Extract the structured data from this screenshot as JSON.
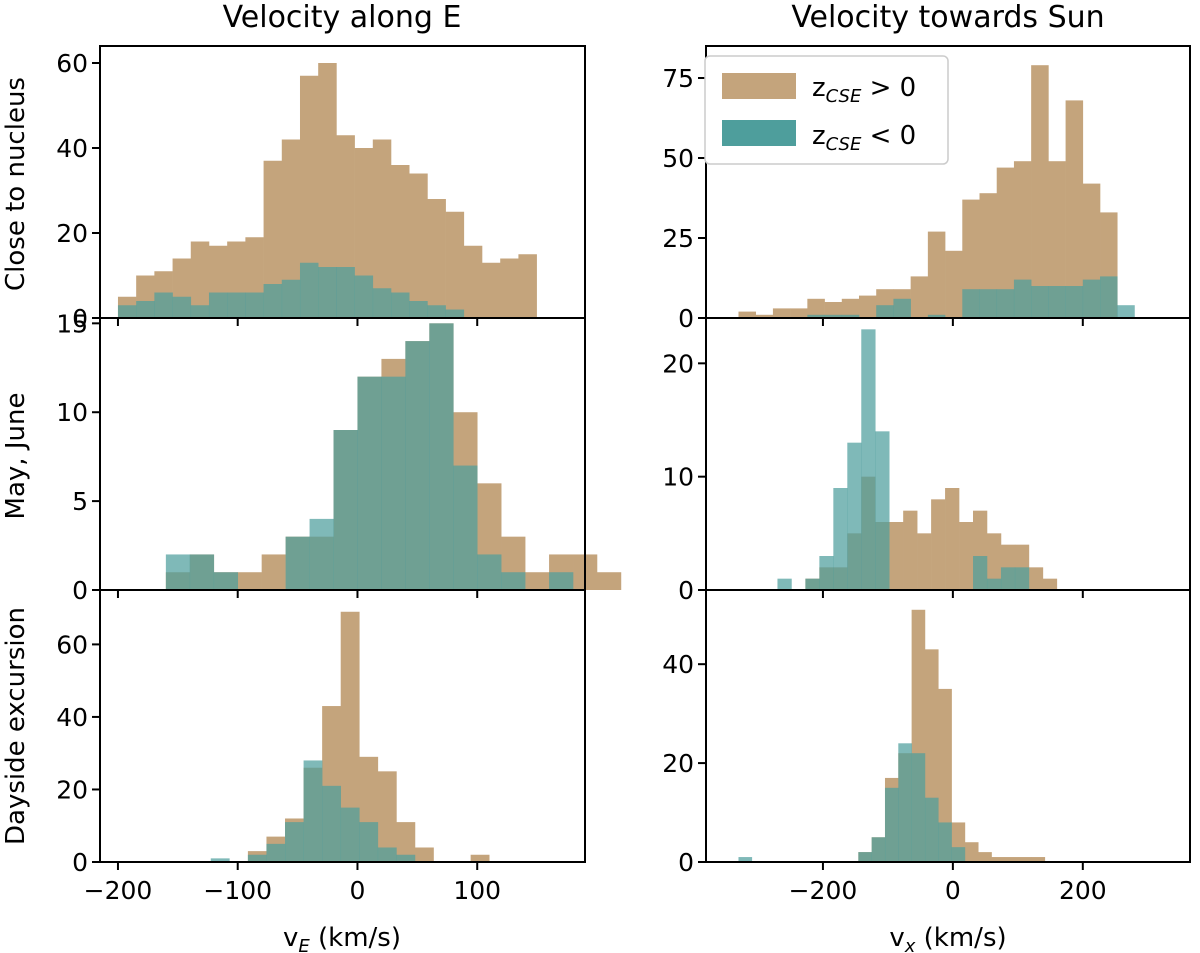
{
  "figure": {
    "col_titles": [
      "Velocity along E",
      "Velocity towards Sun"
    ],
    "row_labels": [
      "Close to nucleus",
      "May, June",
      "Dayside excursion"
    ],
    "xlabels": [
      {
        "main": "v",
        "sub": "E",
        "unit": " (km/s)"
      },
      {
        "main": "v",
        "sub": "x",
        "unit": " (km/s)"
      }
    ]
  },
  "legend": {
    "entries": [
      {
        "main": "z",
        "sub": "CSE",
        "rel": " > 0",
        "color": "#c4a47c"
      },
      {
        "main": "z",
        "sub": "CSE",
        "rel": " < 0",
        "color": "#4e9e9c"
      }
    ]
  },
  "colors": {
    "positive": "#c4a47c",
    "negative": "#4e9e9c",
    "negative_alpha": 0.72
  },
  "chart_data": [
    {
      "type": "bar",
      "panel": "row1-col1",
      "title": "Velocity along E",
      "ylabel": "Close to nucleus",
      "bin_start": -200,
      "bin_width": 15.2,
      "xlim": [
        -215,
        190
      ],
      "ylim": [
        0,
        64
      ],
      "yticks": [
        0,
        20,
        40,
        60
      ],
      "xticks": [
        -200,
        -100,
        0,
        100
      ],
      "series": [
        {
          "name": "zCSE > 0",
          "values": [
            5,
            10,
            11,
            14,
            18,
            17,
            18,
            19,
            37,
            42,
            57,
            60,
            43,
            40,
            42,
            36,
            34,
            28,
            25,
            17,
            13,
            14,
            15
          ]
        },
        {
          "name": "zCSE < 0",
          "values": [
            3,
            4,
            6,
            5,
            3,
            6,
            6,
            6,
            8,
            9,
            13,
            12,
            12,
            10,
            7,
            6,
            4,
            3,
            2,
            0,
            0,
            0,
            0
          ]
        }
      ]
    },
    {
      "type": "bar",
      "panel": "row1-col2",
      "title": "Velocity towards Sun",
      "ylabel": "",
      "bin_start": -330,
      "bin_width": 26.5,
      "xlim": [
        -380,
        365
      ],
      "ylim": [
        0,
        85
      ],
      "yticks": [
        0,
        25,
        50,
        75
      ],
      "xticks": [
        -200,
        0,
        200
      ],
      "series": [
        {
          "name": "zCSE > 0",
          "values": [
            2,
            1,
            3,
            3,
            6,
            5,
            6,
            7,
            9,
            9,
            13,
            27,
            21,
            37,
            39,
            47,
            49,
            79,
            49,
            68,
            42,
            33,
            0,
            0
          ]
        },
        {
          "name": "zCSE < 0",
          "values": [
            0,
            0,
            0,
            0,
            1,
            1,
            1,
            0,
            4,
            6,
            0,
            1,
            0,
            9,
            9,
            9,
            12,
            10,
            10,
            10,
            12,
            13,
            4,
            0
          ]
        }
      ]
    },
    {
      "type": "bar",
      "panel": "row2-col1",
      "title": "",
      "ylabel": "May, June",
      "bin_start": -160,
      "bin_width": 20,
      "xlim": [
        -215,
        190
      ],
      "ylim": [
        0,
        15.3
      ],
      "yticks": [
        0,
        5,
        10,
        15
      ],
      "xticks": [
        -200,
        -100,
        0,
        100
      ],
      "series": [
        {
          "name": "zCSE > 0",
          "values": [
            1,
            2,
            1,
            1,
            2,
            3,
            3,
            9,
            12,
            13,
            14,
            15,
            10,
            6,
            3,
            1,
            2,
            2,
            1
          ]
        },
        {
          "name": "zCSE < 0",
          "values": [
            2,
            2,
            1,
            0,
            0,
            3,
            4,
            9,
            12,
            12,
            14,
            15,
            7,
            2,
            1,
            0,
            1,
            0,
            0
          ]
        }
      ]
    },
    {
      "type": "bar",
      "panel": "row2-col2",
      "title": "",
      "ylabel": "",
      "bin_start": -270,
      "bin_width": 21.5,
      "xlim": [
        -380,
        365
      ],
      "ylim": [
        0,
        24
      ],
      "yticks": [
        0,
        10,
        20
      ],
      "xticks": [
        -200,
        0,
        200
      ],
      "series": [
        {
          "name": "zCSE > 0",
          "values": [
            0,
            0,
            1,
            2,
            2,
            5,
            10,
            6,
            6,
            7,
            5,
            8,
            9,
            6,
            7,
            5,
            4,
            4,
            2,
            1,
            0
          ]
        },
        {
          "name": "zCSE < 0",
          "values": [
            1,
            0,
            1,
            3,
            9,
            13,
            23,
            14,
            0,
            0,
            0,
            0,
            0,
            0,
            3,
            1,
            2,
            2,
            0,
            0,
            0
          ]
        }
      ]
    },
    {
      "type": "bar",
      "panel": "row3-col1",
      "title": "",
      "ylabel": "Dayside excursion",
      "bin_start": -200,
      "bin_width": 15.5,
      "xlim": [
        -215,
        190
      ],
      "ylim": [
        0,
        75
      ],
      "yticks": [
        0,
        20,
        40,
        60
      ],
      "xticks": [
        -200,
        -100,
        0,
        100
      ],
      "series": [
        {
          "name": "zCSE > 0",
          "values": [
            0,
            0,
            0,
            0,
            0,
            0,
            0,
            3,
            7,
            12,
            26,
            43,
            69,
            29,
            25,
            11,
            4,
            0,
            0,
            2,
            0,
            0,
            0,
            0,
            0
          ]
        },
        {
          "name": "zCSE < 0",
          "values": [
            0,
            0,
            0,
            0,
            0,
            1,
            0,
            2,
            5,
            11,
            28,
            21,
            15,
            11,
            4,
            2,
            0,
            0,
            0,
            0,
            0,
            0,
            0,
            0,
            0
          ]
        }
      ]
    },
    {
      "type": "bar",
      "panel": "row3-col2",
      "title": "",
      "ylabel": "",
      "bin_start": -330,
      "bin_width": 20.5,
      "xlim": [
        -380,
        365
      ],
      "ylim": [
        0,
        55
      ],
      "yticks": [
        0,
        20,
        40
      ],
      "xticks": [
        -200,
        0,
        200
      ],
      "series": [
        {
          "name": "zCSE > 0",
          "values": [
            0,
            0,
            0,
            0,
            0,
            0,
            0,
            0,
            0,
            2,
            5,
            17,
            22,
            51,
            43,
            35,
            8,
            4,
            2,
            1,
            1,
            1,
            1,
            0,
            0,
            0,
            0,
            0,
            0,
            0,
            0,
            0
          ]
        },
        {
          "name": "zCSE < 0",
          "values": [
            1,
            0,
            0,
            0,
            0,
            0,
            0,
            0,
            0,
            2,
            5,
            15,
            24,
            22,
            13,
            8,
            3,
            0,
            0,
            0,
            0,
            0,
            0,
            0,
            0,
            0,
            0,
            0,
            0,
            0,
            0,
            0
          ]
        }
      ]
    }
  ]
}
